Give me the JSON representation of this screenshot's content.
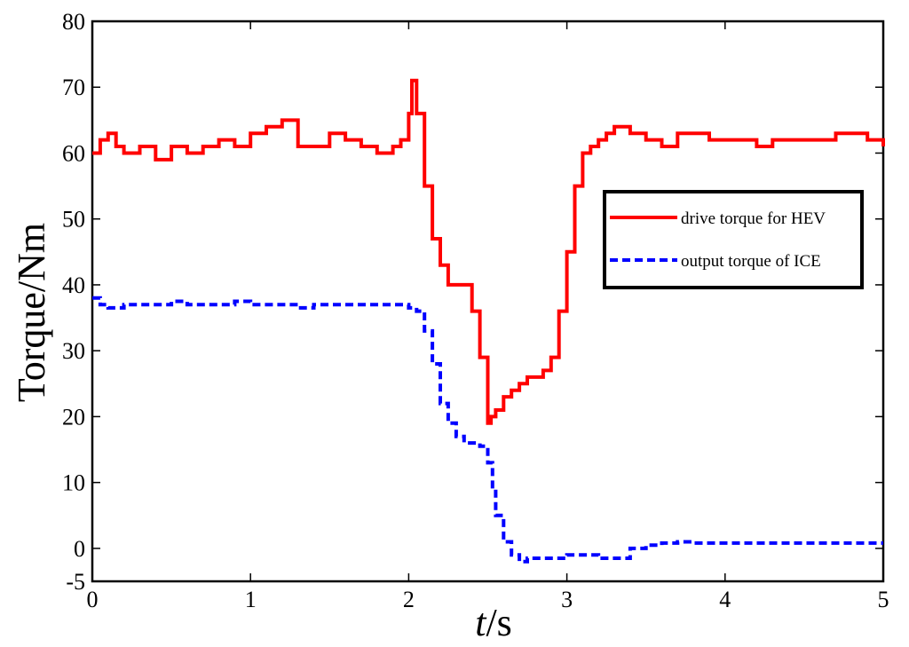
{
  "chart_data": {
    "type": "line",
    "xlabel_italic": "t",
    "xlabel_rest": "/s",
    "ylabel": "Torque/Nm",
    "xlim": [
      0,
      5
    ],
    "ylim": [
      -5,
      80
    ],
    "xticks": [
      "0",
      "1",
      "2",
      "3",
      "4",
      "5"
    ],
    "yticks": [
      "-5",
      "0",
      "10",
      "20",
      "30",
      "40",
      "50",
      "60",
      "70",
      "80"
    ],
    "grid": false,
    "legend_position": "right",
    "series": [
      {
        "name": "drive torque for HEV",
        "color": "#ff0000",
        "style": "solid",
        "x": [
          0.0,
          0.05,
          0.1,
          0.15,
          0.2,
          0.3,
          0.4,
          0.5,
          0.6,
          0.7,
          0.8,
          0.9,
          1.0,
          1.1,
          1.2,
          1.3,
          1.4,
          1.5,
          1.6,
          1.7,
          1.8,
          1.9,
          1.95,
          2.0,
          2.02,
          2.05,
          2.1,
          2.15,
          2.2,
          2.25,
          2.3,
          2.35,
          2.4,
          2.45,
          2.5,
          2.52,
          2.55,
          2.6,
          2.65,
          2.7,
          2.75,
          2.8,
          2.85,
          2.9,
          2.95,
          3.0,
          3.05,
          3.1,
          3.15,
          3.2,
          3.25,
          3.3,
          3.4,
          3.5,
          3.6,
          3.7,
          3.8,
          3.9,
          4.0,
          4.1,
          4.2,
          4.3,
          4.4,
          4.5,
          4.6,
          4.7,
          4.8,
          4.9,
          5.0
        ],
        "y": [
          60,
          62,
          63,
          61,
          60,
          61,
          59,
          61,
          60,
          61,
          62,
          61,
          63,
          64,
          65,
          61,
          61,
          63,
          62,
          61,
          60,
          61,
          62,
          66,
          71,
          66,
          55,
          47,
          43,
          40,
          40,
          40,
          36,
          29,
          19,
          20,
          21,
          23,
          24,
          25,
          26,
          26,
          27,
          29,
          36,
          45,
          55,
          60,
          61,
          62,
          63,
          64,
          63,
          62,
          61,
          63,
          63,
          62,
          62,
          62,
          61,
          62,
          62,
          62,
          62,
          63,
          63,
          62,
          61
        ]
      },
      {
        "name": "output torque of ICE",
        "color": "#0000ff",
        "style": "dashed",
        "x": [
          0.0,
          0.05,
          0.1,
          0.2,
          0.3,
          0.4,
          0.5,
          0.6,
          0.7,
          0.8,
          0.9,
          1.0,
          1.1,
          1.2,
          1.3,
          1.4,
          1.5,
          1.6,
          1.7,
          1.8,
          1.9,
          1.95,
          2.0,
          2.05,
          2.1,
          2.15,
          2.2,
          2.25,
          2.3,
          2.35,
          2.4,
          2.45,
          2.5,
          2.53,
          2.55,
          2.6,
          2.65,
          2.7,
          2.75,
          2.8,
          2.9,
          3.0,
          3.1,
          3.2,
          3.3,
          3.4,
          3.5,
          3.6,
          3.7,
          3.8,
          3.9,
          4.0,
          4.2,
          4.4,
          4.6,
          4.8,
          5.0
        ],
        "y": [
          38,
          37,
          36.5,
          37,
          37,
          37,
          37.5,
          37,
          37,
          37,
          37.5,
          37,
          37,
          37,
          36.5,
          37,
          37,
          37,
          37,
          37,
          37,
          37,
          36.5,
          36,
          33,
          28,
          22,
          19,
          17,
          16,
          16,
          15.5,
          13,
          9,
          5,
          1,
          -1,
          -2,
          -1.5,
          -1.5,
          -1.5,
          -1,
          -1,
          -1.5,
          -1.5,
          0,
          0.5,
          0.8,
          1,
          0.8,
          0.8,
          0.8,
          0.8,
          0.8,
          0.8,
          0.8,
          0.8
        ]
      }
    ]
  }
}
